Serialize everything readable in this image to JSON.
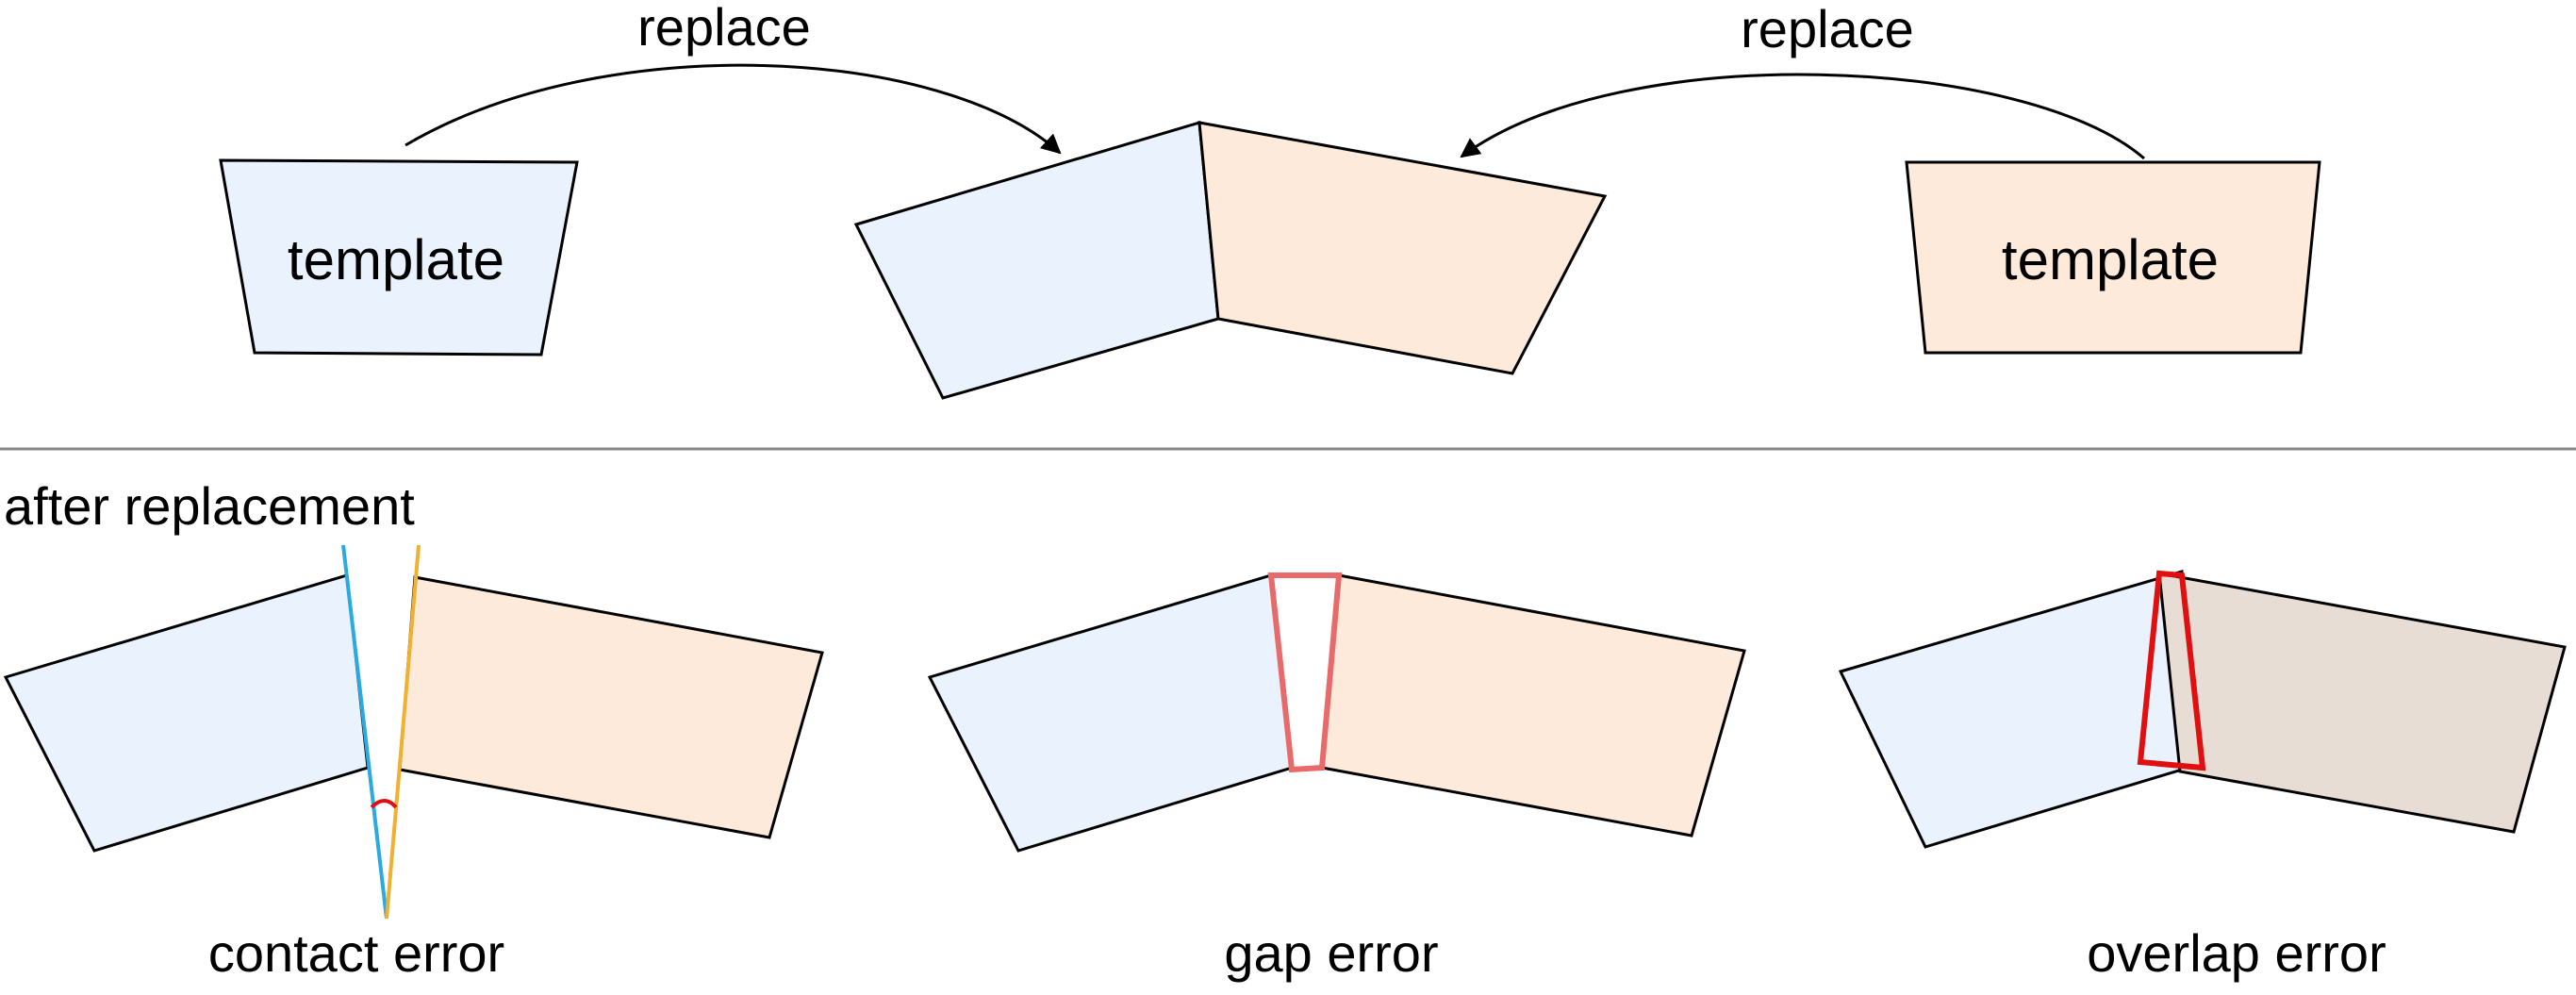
{
  "labels": {
    "replace_left": "replace",
    "replace_right": "replace",
    "template_left": "template",
    "template_right": "template",
    "after_replacement": "after replacement",
    "contact_error": "contact error",
    "gap_error": "gap error",
    "overlap_error": "overlap error"
  },
  "colors": {
    "blue_fill": "#EAF3FD",
    "peach_fill": "#FDEADB",
    "overlap_fill": "#E8DDD4",
    "stroke": "#000000",
    "contact_blue": "#2AAAE0",
    "contact_orange": "#F0B030",
    "angle_red": "#E01010",
    "gap_red": "#E86A6A",
    "overlap_red": "#E01010",
    "divider": "#888888"
  }
}
